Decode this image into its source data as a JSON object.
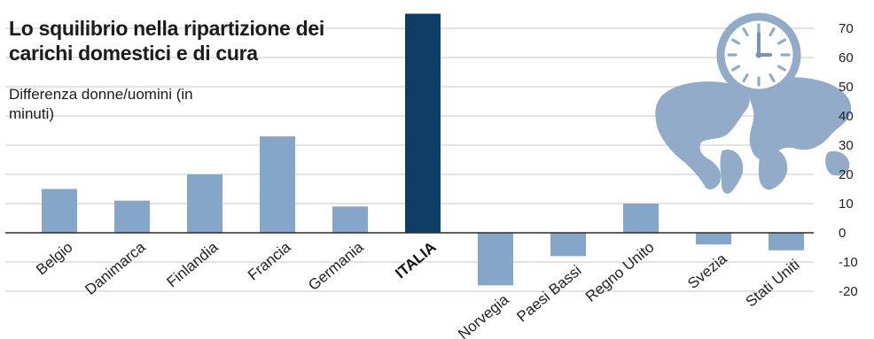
{
  "chart_data": {
    "type": "bar",
    "title": "Lo squilibrio nella ripartizione dei carichi domestici e di cura",
    "subtitle": "Differenza donne/uomini (in minuti)",
    "categories": [
      "Belgio",
      "Danimarca",
      "Finlandia",
      "Francia",
      "Germania",
      "ITALIA",
      "Norvegia",
      "Paesi Bassi",
      "Regno Unito",
      "Svezia",
      "Stati Uniti"
    ],
    "values": [
      15,
      11,
      20,
      33,
      9,
      75,
      -18,
      -8,
      10,
      -4,
      -6
    ],
    "highlight": "ITALIA",
    "ylim": [
      -20,
      70
    ],
    "yticks": [
      -20,
      -10,
      0,
      10,
      20,
      30,
      40,
      50,
      60,
      70
    ],
    "ytick_labels": [
      "-20",
      "-10",
      "0",
      "10",
      "20",
      "30",
      "40",
      "50",
      "60",
      "70"
    ],
    "y_axis_position": "right",
    "grid": true,
    "colors": {
      "bar": "#86a6c9",
      "highlight": "#0e3d66",
      "grid": "#c7c7c7",
      "baseline": "#2b2b2b",
      "illustration": "#8ca7c6"
    }
  },
  "decoration": {
    "illustration": "clock-over-world-map"
  }
}
